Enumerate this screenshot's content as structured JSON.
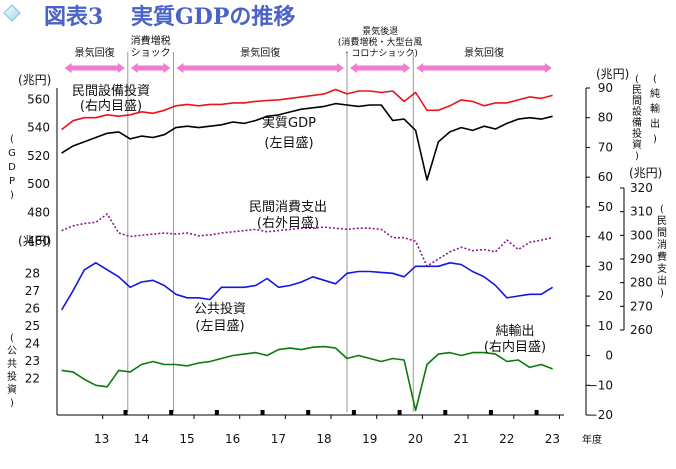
{
  "chart_data": {
    "type": "line",
    "title_prefix": "図表3",
    "title_main": "実質GDPの推移",
    "phases": [
      {
        "label": "景気回復",
        "start": 12.1,
        "end": 13.55,
        "lines": [
          "景気回復"
        ]
      },
      {
        "label": "消費増税ショック",
        "start": 13.55,
        "end": 14.55,
        "lines": [
          "消費増税",
          "ショック"
        ]
      },
      {
        "label": "景気回復",
        "start": 14.55,
        "end": 18.35,
        "lines": [
          "景気回復"
        ]
      },
      {
        "label": "景気後退(消費増税・大型台風・コロナショック)",
        "start": 18.35,
        "end": 19.8,
        "lines": [
          "景気後退",
          "(消費増税・大型台風",
          "・コロナショック)"
        ]
      },
      {
        "label": "景気回復",
        "start": 19.8,
        "end": 22.9,
        "lines": [
          "景気回復"
        ]
      }
    ],
    "phase_dividers": [
      13.55,
      14.55,
      18.35,
      19.8
    ],
    "x_axis": {
      "unit": "年度",
      "ticks": [
        "13",
        "14",
        "15",
        "16",
        "17",
        "18",
        "19",
        "20",
        "21",
        "22",
        "23"
      ],
      "range": [
        12.0,
        23.1
      ]
    },
    "axes": {
      "gdp_left": {
        "unit": "(兆円)",
        "ticks": [
          "560",
          "540",
          "520",
          "500",
          "480",
          "460"
        ],
        "label": "(GDP)",
        "range": [
          445,
          568
        ]
      },
      "invest_left": {
        "unit": "(兆円)",
        "ticks": [
          "28",
          "27",
          "26",
          "25",
          "24",
          "23",
          "22"
        ],
        "label": "(公共投資)",
        "range": [
          19.9,
          28.3
        ]
      },
      "right_inner": {
        "unit": "(兆円)",
        "ticks": [
          "90",
          "80",
          "70",
          "60",
          "50",
          "40",
          "30",
          "20",
          "10",
          "0",
          "−10",
          "−20"
        ],
        "label": "(純輸出)(民間設備投資)",
        "range": [
          -20,
          90
        ]
      },
      "right_outer": {
        "unit": "(兆円)",
        "ticks": [
          "320",
          "310",
          "300",
          "290",
          "280",
          "270",
          "260"
        ],
        "label": "(民間消費支出)",
        "range": [
          260,
          320
        ]
      }
    },
    "series": [
      {
        "name": "民間設備投資",
        "axis_label": "(右内目盛)",
        "color": "#e8141c",
        "dash": "",
        "axis": "right_inner",
        "x": [
          12.1,
          12.35,
          12.6,
          12.85,
          13.1,
          13.35,
          13.6,
          13.85,
          14.1,
          14.35,
          14.6,
          14.85,
          15.1,
          15.35,
          15.6,
          15.85,
          16.1,
          16.35,
          16.6,
          16.85,
          17.1,
          17.35,
          17.6,
          17.85,
          18.1,
          18.35,
          18.6,
          18.85,
          19.1,
          19.35,
          19.6,
          19.85,
          20.1,
          20.35,
          20.6,
          20.85,
          21.1,
          21.35,
          21.6,
          21.85,
          22.1,
          22.35,
          22.6,
          22.85
        ],
        "values": [
          76,
          79,
          80,
          80,
          81,
          80.5,
          81,
          82,
          81.5,
          82.5,
          84,
          84.5,
          84,
          84.5,
          84.5,
          85,
          85,
          85.5,
          85.8,
          86,
          86.5,
          87,
          87.5,
          88,
          89.5,
          88,
          89,
          89,
          88.5,
          89,
          85.5,
          88.5,
          82.5,
          82.5,
          84,
          86,
          85.5,
          84,
          85,
          85,
          86,
          87,
          86.5,
          87.5
        ]
      },
      {
        "name": "実質GDP",
        "axis_label": "(左目盛)",
        "color": "#000000",
        "dash": "",
        "axis": "gdp_left",
        "x": [
          12.1,
          12.35,
          12.6,
          12.85,
          13.1,
          13.35,
          13.6,
          13.85,
          14.1,
          14.35,
          14.6,
          14.85,
          15.1,
          15.35,
          15.6,
          15.85,
          16.1,
          16.35,
          16.6,
          16.85,
          17.1,
          17.35,
          17.6,
          17.85,
          18.1,
          18.35,
          18.6,
          18.85,
          19.1,
          19.35,
          19.6,
          19.85,
          20.1,
          20.35,
          20.6,
          20.85,
          21.1,
          21.35,
          21.6,
          21.85,
          22.1,
          22.35,
          22.6,
          22.85
        ],
        "values": [
          522,
          527,
          530,
          533,
          536,
          537,
          532,
          534,
          533,
          535,
          540,
          541,
          540,
          541,
          542,
          544,
          543,
          545,
          548,
          549,
          551,
          553,
          554,
          555,
          557,
          556,
          555,
          556,
          556,
          545,
          546,
          538,
          503,
          530,
          537,
          540,
          538,
          541,
          539,
          543,
          546,
          547,
          546,
          548
        ]
      },
      {
        "name": "民間消費支出",
        "axis_label": "(右外目盛)",
        "color": "#8b1d8b",
        "dash": "2,2",
        "axis": "right_outer",
        "x": [
          12.1,
          12.35,
          12.6,
          12.85,
          13.1,
          13.35,
          13.6,
          13.85,
          14.1,
          14.35,
          14.6,
          14.85,
          15.1,
          15.35,
          15.6,
          15.85,
          16.1,
          16.35,
          16.6,
          16.85,
          17.1,
          17.35,
          17.6,
          17.85,
          18.1,
          18.35,
          18.6,
          18.85,
          19.1,
          19.35,
          19.6,
          19.85,
          20.1,
          20.35,
          20.6,
          20.85,
          21.1,
          21.35,
          21.6,
          21.85,
          22.1,
          22.35,
          22.6,
          22.85
        ],
        "values": [
          302,
          304,
          305,
          305.5,
          309,
          301,
          299.5,
          300,
          300.5,
          301,
          300.5,
          301,
          299.8,
          300.2,
          301,
          301.5,
          302,
          302.5,
          301.5,
          302,
          302.5,
          303,
          303,
          303.5,
          303,
          302.5,
          303,
          303,
          302.5,
          299,
          299,
          297.5,
          287,
          290,
          293,
          295,
          293.5,
          294,
          293,
          298,
          294,
          297,
          298,
          299
        ]
      },
      {
        "name": "公共投資",
        "axis_label": "(左目盛)",
        "color": "#1515e0",
        "dash": "",
        "axis": "invest_left",
        "x": [
          12.1,
          12.35,
          12.6,
          12.85,
          13.1,
          13.35,
          13.6,
          13.85,
          14.1,
          14.35,
          14.6,
          14.85,
          15.1,
          15.35,
          15.6,
          15.85,
          16.1,
          16.35,
          16.6,
          16.85,
          17.1,
          17.35,
          17.6,
          17.85,
          18.1,
          18.35,
          18.6,
          18.85,
          19.1,
          19.35,
          19.6,
          19.85,
          20.1,
          20.35,
          20.6,
          20.85,
          21.1,
          21.35,
          21.6,
          21.85,
          22.1,
          22.35,
          22.6,
          22.85
        ],
        "values": [
          25.9,
          27,
          28.2,
          28.6,
          28.2,
          27.8,
          27.2,
          27.5,
          27.6,
          27.3,
          26.8,
          26.6,
          26.6,
          26.5,
          27.2,
          27.2,
          27.2,
          27.3,
          27.7,
          27.2,
          27.3,
          27.5,
          27.8,
          27.6,
          27.4,
          28,
          28.1,
          28.1,
          28.05,
          28,
          27.8,
          28.4,
          28.4,
          28.4,
          28.6,
          28.5,
          28.1,
          27.8,
          27.3,
          26.6,
          26.7,
          26.8,
          26.8,
          27.2
        ]
      },
      {
        "name": "純輸出",
        "axis_label": "(右内目盛)",
        "color": "#0a7a0a",
        "dash": "",
        "axis": "right_inner",
        "x": [
          12.1,
          12.35,
          12.6,
          12.85,
          13.1,
          13.35,
          13.6,
          13.85,
          14.1,
          14.35,
          14.6,
          14.85,
          15.1,
          15.35,
          15.6,
          15.85,
          16.1,
          16.35,
          16.6,
          16.85,
          17.1,
          17.35,
          17.6,
          17.85,
          18.1,
          18.35,
          18.6,
          18.85,
          19.1,
          19.35,
          19.6,
          19.85,
          20.1,
          20.35,
          20.6,
          20.85,
          21.1,
          21.35,
          21.6,
          21.85,
          22.1,
          22.35,
          22.6,
          22.85
        ],
        "values": [
          -5,
          -5.5,
          -8,
          -10,
          -10.5,
          -5,
          -5.5,
          -3,
          -2,
          -3,
          -3,
          -3.5,
          -2.5,
          -2,
          -1,
          0,
          0.5,
          1,
          0,
          2,
          2.5,
          2,
          2.8,
          3,
          2.5,
          -1,
          0,
          -1,
          -2,
          -1,
          -1.5,
          -18.5,
          -3,
          0.5,
          1,
          0,
          1,
          1,
          0.5,
          -2,
          -1.5,
          -4,
          -3,
          -4.5
        ]
      }
    ],
    "annotations": [
      {
        "lines": [
          "民間設備投資",
          "(右内目盛)"
        ]
      },
      {
        "lines": [
          "実質GDP",
          "(左目盛)"
        ]
      },
      {
        "lines": [
          "民間消費支出",
          "(右外目盛)"
        ]
      },
      {
        "lines": [
          "公共投資",
          "(左目盛)"
        ]
      },
      {
        "lines": [
          "純輸出",
          "(右内目盛)"
        ]
      }
    ],
    "colors": {
      "title": "#4a63c9",
      "phase_arrow": "#f07bd0",
      "divider": "#999999"
    }
  }
}
